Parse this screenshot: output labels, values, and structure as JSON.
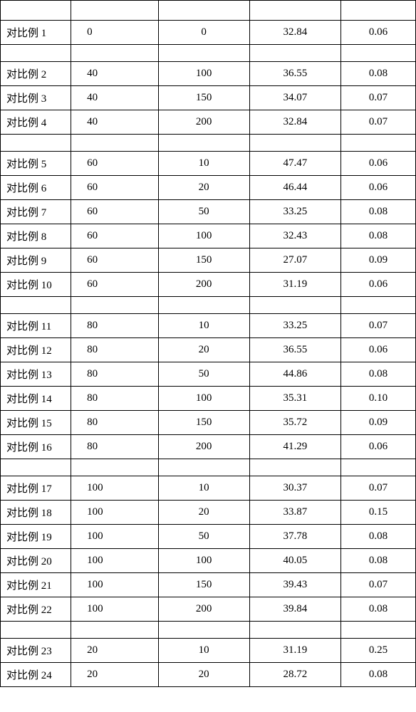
{
  "table": {
    "type": "table",
    "background_color": "#ffffff",
    "border_color": "#000000",
    "text_color": "#000000",
    "font_family": "SimSun",
    "label_fontsize": 15,
    "value_fontsize": 15,
    "col_widths_pct": [
      17,
      21,
      22,
      22,
      18
    ],
    "col_align": [
      "left",
      "left",
      "center",
      "center",
      "center"
    ],
    "groups": [
      {
        "rows": [
          {
            "label": "对比例 1",
            "a": "0",
            "b": "0",
            "c": "32.84",
            "d": "0.06"
          }
        ]
      },
      {
        "rows": [
          {
            "label": "对比例 2",
            "a": "40",
            "b": "100",
            "c": "36.55",
            "d": "0.08"
          },
          {
            "label": "对比例 3",
            "a": "40",
            "b": "150",
            "c": "34.07",
            "d": "0.07"
          },
          {
            "label": "对比例 4",
            "a": "40",
            "b": "200",
            "c": "32.84",
            "d": "0.07"
          }
        ]
      },
      {
        "rows": [
          {
            "label": "对比例 5",
            "a": "60",
            "b": "10",
            "c": "47.47",
            "d": "0.06"
          },
          {
            "label": "对比例 6",
            "a": "60",
            "b": "20",
            "c": "46.44",
            "d": "0.06"
          },
          {
            "label": "对比例 7",
            "a": "60",
            "b": "50",
            "c": "33.25",
            "d": "0.08"
          },
          {
            "label": "对比例 8",
            "a": "60",
            "b": "100",
            "c": "32.43",
            "d": "0.08"
          },
          {
            "label": "对比例 9",
            "a": "60",
            "b": "150",
            "c": "27.07",
            "d": "0.09"
          },
          {
            "label": "对比例 10",
            "a": "60",
            "b": "200",
            "c": "31.19",
            "d": "0.06"
          }
        ]
      },
      {
        "rows": [
          {
            "label": "对比例 11",
            "a": "80",
            "b": "10",
            "c": "33.25",
            "d": "0.07"
          },
          {
            "label": "对比例 12",
            "a": "80",
            "b": "20",
            "c": "36.55",
            "d": "0.06"
          },
          {
            "label": "对比例 13",
            "a": "80",
            "b": "50",
            "c": "44.86",
            "d": "0.08"
          },
          {
            "label": "对比例 14",
            "a": "80",
            "b": "100",
            "c": "35.31",
            "d": "0.10"
          },
          {
            "label": "对比例 15",
            "a": "80",
            "b": "150",
            "c": "35.72",
            "d": "0.09"
          },
          {
            "label": "对比例 16",
            "a": "80",
            "b": "200",
            "c": "41.29",
            "d": "0.06"
          }
        ]
      },
      {
        "rows": [
          {
            "label": "对比例 17",
            "a": "100",
            "b": "10",
            "c": "30.37",
            "d": "0.07"
          },
          {
            "label": "对比例 18",
            "a": "100",
            "b": "20",
            "c": "33.87",
            "d": "0.15"
          },
          {
            "label": "对比例 19",
            "a": "100",
            "b": "50",
            "c": "37.78",
            "d": "0.08"
          },
          {
            "label": "对比例 20",
            "a": "100",
            "b": "100",
            "c": "40.05",
            "d": "0.08"
          },
          {
            "label": "对比例 21",
            "a": "100",
            "b": "150",
            "c": "39.43",
            "d": "0.07"
          },
          {
            "label": "对比例 22",
            "a": "100",
            "b": "200",
            "c": "39.84",
            "d": "0.08"
          }
        ]
      },
      {
        "rows": [
          {
            "label": "对比例 23",
            "a": "20",
            "b": "10",
            "c": "31.19",
            "d": "0.25"
          },
          {
            "label": "对比例 24",
            "a": "20",
            "b": "20",
            "c": "28.72",
            "d": "0.08"
          }
        ]
      }
    ]
  }
}
